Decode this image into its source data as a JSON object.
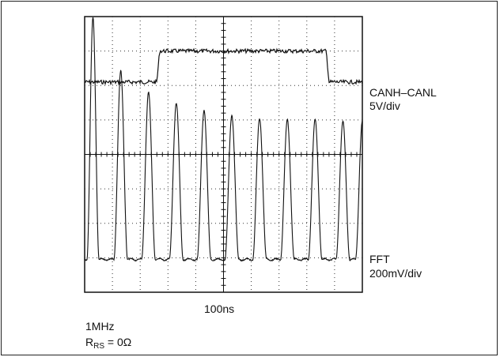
{
  "chart_data": {
    "type": "line",
    "grid": true,
    "divisions": {
      "x": 10,
      "y": 8
    },
    "series": [
      {
        "name": "CANH–CANL",
        "scale": "5V/div",
        "description_points_div": [
          [
            0,
            1.9
          ],
          [
            2.6,
            1.9
          ],
          [
            2.7,
            1.0
          ],
          [
            8.7,
            1.0
          ],
          [
            8.8,
            1.9
          ],
          [
            10,
            1.9
          ]
        ]
      },
      {
        "name": "FFT",
        "scale": "200mV/div",
        "peaks_div": [
          [
            0.3,
            0.05
          ],
          [
            1.3,
            1.6
          ],
          [
            2.3,
            2.2
          ],
          [
            3.3,
            2.5
          ],
          [
            4.3,
            2.7
          ],
          [
            5.3,
            2.85
          ],
          [
            6.3,
            2.95
          ],
          [
            7.3,
            3.0
          ],
          [
            8.3,
            3.0
          ],
          [
            9.3,
            3.05
          ],
          [
            10,
            3.05
          ]
        ]
      }
    ],
    "xlabel": "100ns"
  },
  "labels": {
    "trace1_name": "CANH–CANL",
    "trace1_scale": "5V/div",
    "trace2_name": "FFT",
    "trace2_scale": "200mV/div",
    "time_div": "100ns",
    "freq": "1MHz",
    "rrs_main": "R",
    "rrs_sub": "RS",
    "rrs_value": " = 0Ω"
  }
}
